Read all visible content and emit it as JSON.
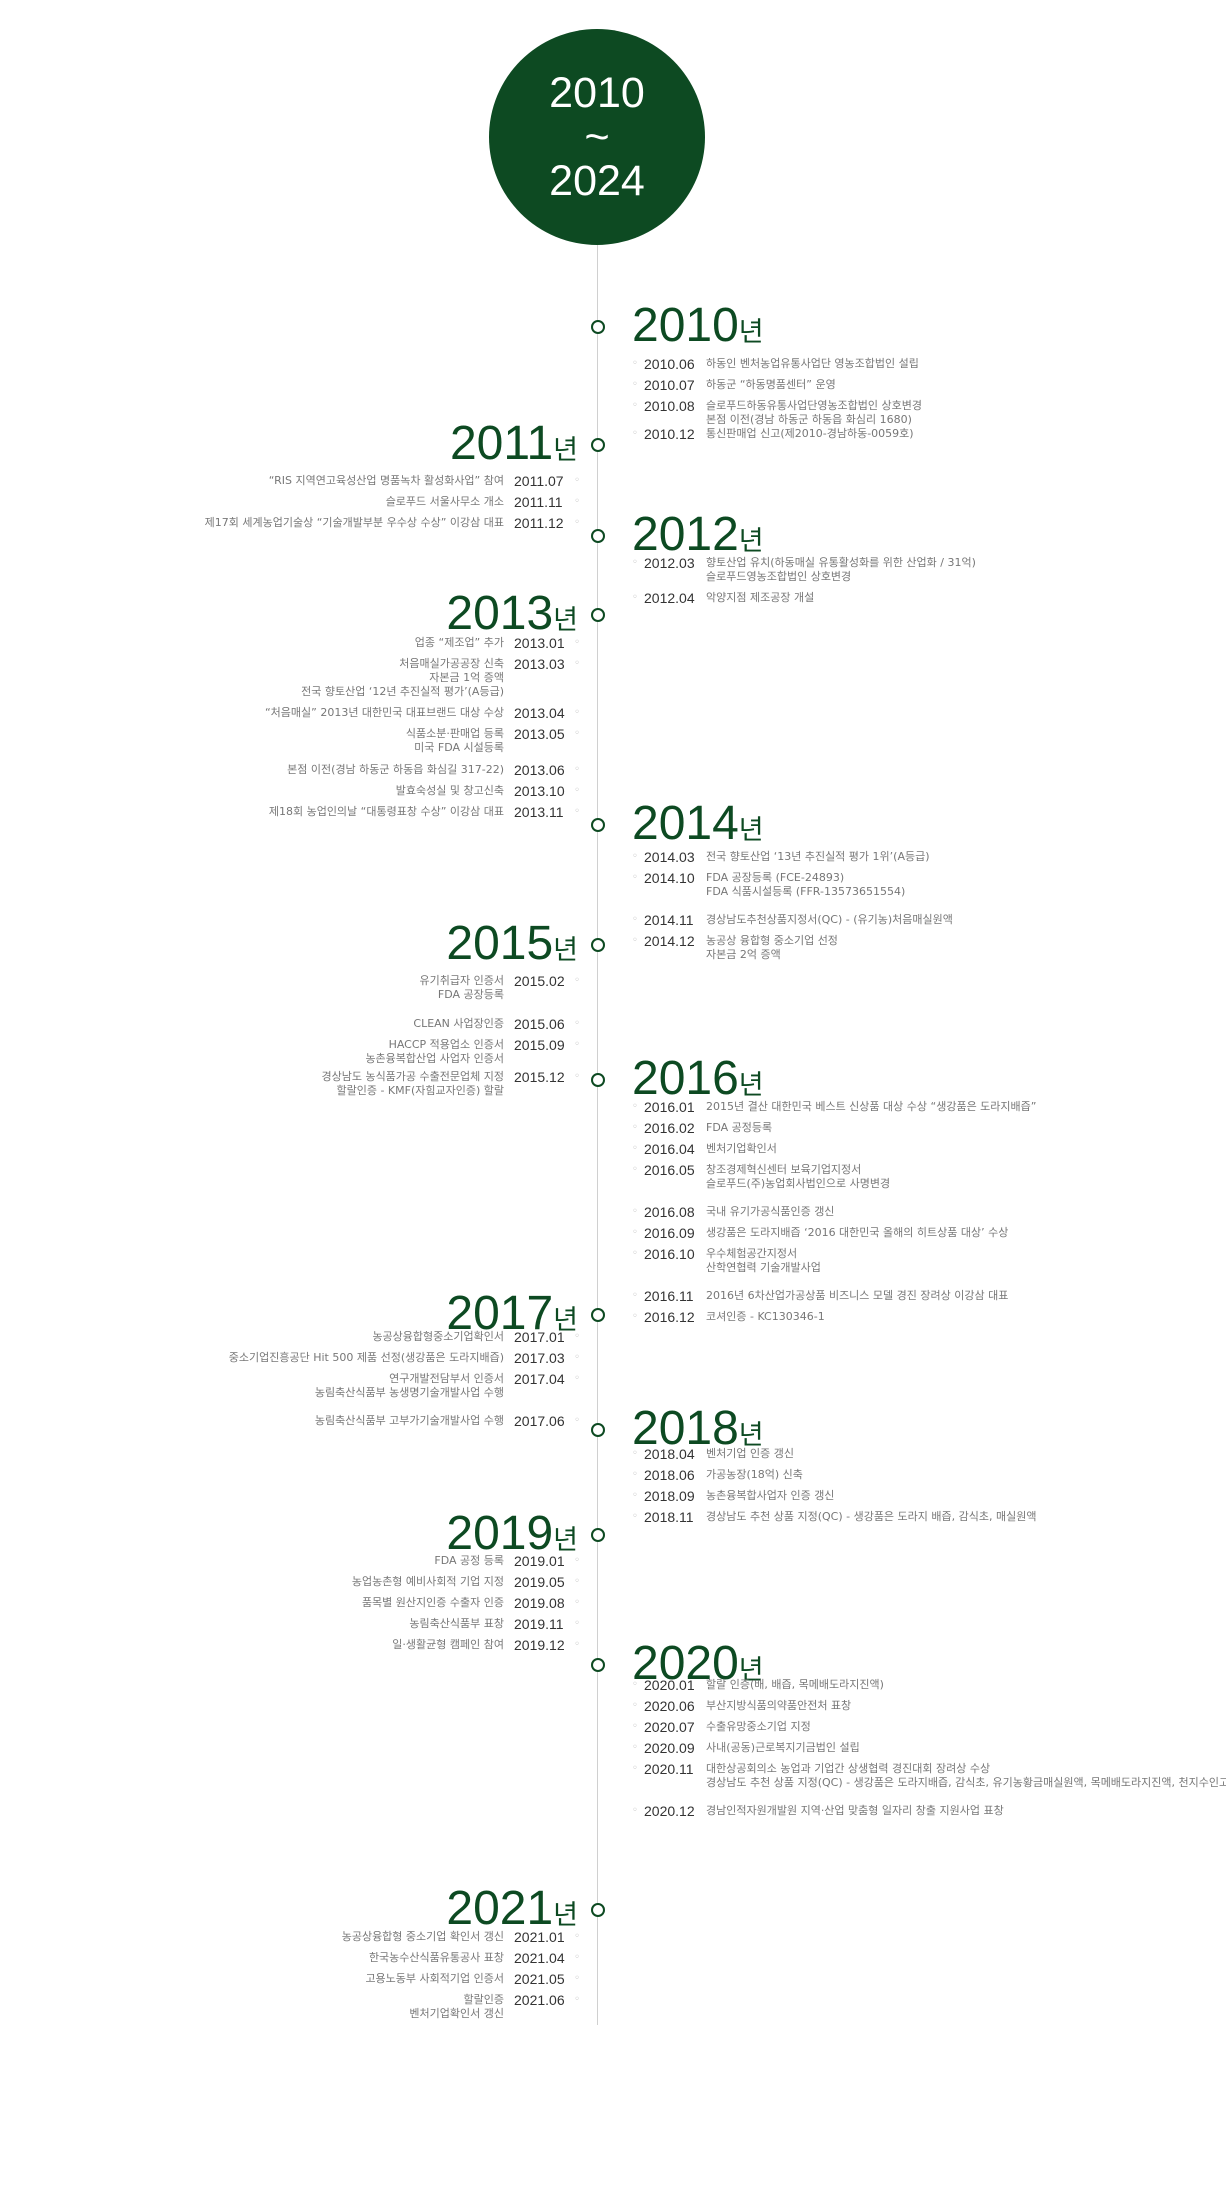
{
  "hero": {
    "from": "2010",
    "sep": "~",
    "to": "2024"
  },
  "year_suffix": "년",
  "groups": [
    {
      "year": "2010",
      "side": "right",
      "events": [
        {
          "date": "2010.06",
          "lines": [
            "하동인 벤처농업유통사업단 영농조합법인 설립"
          ]
        },
        {
          "date": "2010.07",
          "lines": [
            "하동군 “하동명품센터” 운영"
          ]
        },
        {
          "date": "2010.08",
          "lines": [
            "슬로푸드하동유통사업단영농조합법인 상호변경",
            "본점 이전(경남 하동군 하동읍 화심리 1680)"
          ]
        },
        {
          "date": "2010.12",
          "lines": [
            "통신판매업 신고(제2010-경남하동-0059호)"
          ]
        }
      ]
    },
    {
      "year": "2011",
      "side": "left",
      "events": [
        {
          "date": "2011.07",
          "lines": [
            "“RIS 지역연고육성산업 명품녹차 활성화사업” 참여"
          ]
        },
        {
          "date": "2011.11",
          "lines": [
            "슬로푸드 서울사무소 개소"
          ]
        },
        {
          "date": "2011.12",
          "lines": [
            "제17회 세계농업기술상 “기술개발부분 우수상 수상” 이강삼 대표"
          ]
        }
      ]
    },
    {
      "year": "2012",
      "side": "right",
      "events": [
        {
          "date": "2012.03",
          "lines": [
            "향토산업 유치(하동매실 유통활성화를 위한 산업화 / 31억)",
            "슬로푸드영농조합법인 상호변경"
          ]
        },
        {
          "date": "2012.04",
          "lines": [
            "악양지점 제조공장 개설"
          ]
        }
      ]
    },
    {
      "year": "2013",
      "side": "left",
      "events": [
        {
          "date": "2013.01",
          "lines": [
            "업종 “제조업” 추가"
          ]
        },
        {
          "date": "2013.03",
          "lines": [
            "처음매실가공공장 신축",
            "자본금 1억 증액",
            "전국 향토산업 ‘12년 추진실적 평가’(A등급)"
          ]
        },
        {
          "date": "2013.04",
          "lines": [
            "“처음매실” 2013년 대한민국 대표브랜드 대상 수상"
          ]
        },
        {
          "date": "2013.05",
          "lines": [
            "식품소분·판매업 등록",
            "미국 FDA 시설등록"
          ]
        },
        {
          "date": "2013.06",
          "lines": [
            "본점 이전(경남 하동군 하동읍 화심길 317-22)"
          ]
        },
        {
          "date": "2013.10",
          "lines": [
            "발효숙성실 및 창고신축"
          ]
        },
        {
          "date": "2013.11",
          "lines": [
            "제18회 농업인의날 “대통령표창 수상” 이강삼 대표"
          ]
        }
      ]
    },
    {
      "year": "2014",
      "side": "right",
      "events": [
        {
          "date": "2014.03",
          "lines": [
            "전국 향토산업 ‘13년 추진실적 평가 1위’(A등급)"
          ]
        },
        {
          "date": "2014.10",
          "lines": [
            "FDA 공장등록 (FCE-24893)",
            "FDA 식품시설등록 (FFR-13573651554)"
          ]
        },
        {
          "date": "2014.11",
          "lines": [
            "경상남도추천상품지정서(QC) - (유기농)처음매실원액"
          ]
        },
        {
          "date": "2014.12",
          "lines": [
            "농공상 융합형 중소기업 선정",
            "자본금 2억 증액"
          ]
        }
      ]
    },
    {
      "year": "2015",
      "side": "left",
      "events": [
        {
          "date": "2015.02",
          "lines": [
            "유기취급자 인증서",
            "FDA 공장등록"
          ]
        },
        {
          "date": "2015.06",
          "lines": [
            "CLEAN 사업장인증"
          ]
        },
        {
          "date": "2015.09",
          "lines": [
            "HACCP 적용업소 인증서",
            "농촌융복합산업 사업자 인증서"
          ]
        },
        {
          "date": "2015.12",
          "lines": [
            "경상남도 농식품가공 수출전문업체 지정",
            "할랄인증 - KMF(자힘교자인증) 할랄"
          ]
        }
      ]
    },
    {
      "year": "2016",
      "side": "right",
      "events": [
        {
          "date": "2016.01",
          "lines": [
            "2015년 결산 대한민국 베스트 신상품 대상 수상 “생강품은 도라지배즙”"
          ]
        },
        {
          "date": "2016.02",
          "lines": [
            "FDA 공정등록"
          ]
        },
        {
          "date": "2016.04",
          "lines": [
            "벤처기업확인서"
          ]
        },
        {
          "date": "2016.05",
          "lines": [
            "창조경제혁신센터 보육기업지정서",
            "슬로푸드(주)농업회사법인으로 사명변경"
          ]
        },
        {
          "date": "2016.08",
          "lines": [
            "국내 유기가공식품인증 갱신"
          ]
        },
        {
          "date": "2016.09",
          "lines": [
            "생강품은 도라지배즙 ‘2016 대한민국 올해의 히트상품 대상’ 수상"
          ]
        },
        {
          "date": "2016.10",
          "lines": [
            "우수체험공간지정서",
            "산학연협력 기술개발사업"
          ]
        },
        {
          "date": "2016.11",
          "lines": [
            "2016년 6차산업가공상품 비즈니스 모델 경진 장려상 이강삼 대표"
          ]
        },
        {
          "date": "2016.12",
          "lines": [
            "코셔인증 - KC130346-1"
          ]
        }
      ]
    },
    {
      "year": "2017",
      "side": "left",
      "events": [
        {
          "date": "2017.01",
          "lines": [
            "농공상융합형중소기업확인서"
          ]
        },
        {
          "date": "2017.03",
          "lines": [
            "중소기업진흥공단 Hit 500 제품 선정(생강품은 도라지배즙)"
          ]
        },
        {
          "date": "2017.04",
          "lines": [
            "연구개발전담부서 인증서",
            "농림축산식품부 농생명기술개발사업 수행"
          ]
        },
        {
          "date": "2017.06",
          "lines": [
            "농림축산식품부 고부가기술개발사업 수행"
          ]
        }
      ]
    },
    {
      "year": "2018",
      "side": "right",
      "events": [
        {
          "date": "2018.04",
          "lines": [
            "벤처기업 인증 갱신"
          ]
        },
        {
          "date": "2018.06",
          "lines": [
            "가공농장(18억) 신축"
          ]
        },
        {
          "date": "2018.09",
          "lines": [
            "농촌융복합사업자 인증 갱신"
          ]
        },
        {
          "date": "2018.11",
          "lines": [
            "경상남도 추천 상품 지정(QC) - 생강품은 도라지 배즙, 감식초, 매실원액"
          ]
        }
      ]
    },
    {
      "year": "2019",
      "side": "left",
      "events": [
        {
          "date": "2019.01",
          "lines": [
            "FDA 공정 등록"
          ]
        },
        {
          "date": "2019.05",
          "lines": [
            "농업농촌형 예비사회적 기업 지정"
          ]
        },
        {
          "date": "2019.08",
          "lines": [
            "품목별 원산지인증 수출자 인증"
          ]
        },
        {
          "date": "2019.11",
          "lines": [
            "농림축산식품부 표창"
          ]
        },
        {
          "date": "2019.12",
          "lines": [
            "일·생활균형 캠페인 참여"
          ]
        }
      ]
    },
    {
      "year": "2020",
      "side": "right",
      "events": [
        {
          "date": "2020.01",
          "lines": [
            "할랄 인증(배, 배즙, 목메배도라지진액)"
          ]
        },
        {
          "date": "2020.06",
          "lines": [
            "부산지방식품의약품안전처 표창"
          ]
        },
        {
          "date": "2020.07",
          "lines": [
            "수출유망중소기업 지정"
          ]
        },
        {
          "date": "2020.09",
          "lines": [
            "사내(공동)근로복지기금법인 설립"
          ]
        },
        {
          "date": "2020.11",
          "lines": [
            "대한상공회의소 농업과 기업간 상생협력 경진대회 장려상 수상",
            "경상남도 추천 상품 지정(QC) - 생강품은 도라지배즙, 감식초, 유기농황금매실원액, 목메배도라지진액, 천지수인고"
          ]
        },
        {
          "date": "2020.12",
          "lines": [
            "경남인적자원개발원 지역·산업 맞춤형 일자리 창출 지원사업 표창"
          ]
        }
      ]
    },
    {
      "year": "2021",
      "side": "left",
      "events": [
        {
          "date": "2021.01",
          "lines": [
            "농공상융합형 중소기업 확인서 갱신"
          ]
        },
        {
          "date": "2021.04",
          "lines": [
            "한국농수산식품유통공사 표창"
          ]
        },
        {
          "date": "2021.05",
          "lines": [
            "고용노동부 사회적기업 인증서"
          ]
        },
        {
          "date": "2021.06",
          "lines": [
            "할랄인증",
            "벤처기업확인서 갱신"
          ]
        }
      ]
    }
  ]
}
